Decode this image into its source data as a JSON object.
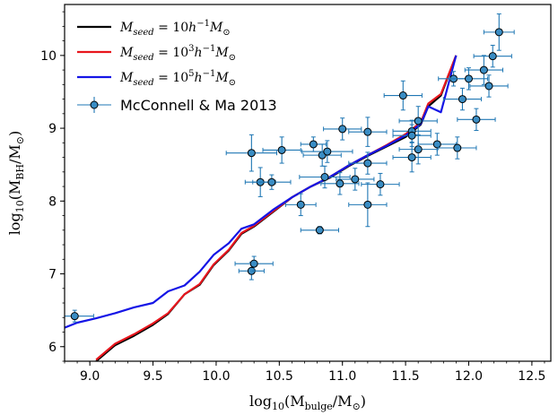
{
  "chart_data": {
    "type": "scatter",
    "xlim": [
      8.8,
      12.65
    ],
    "ylim": [
      5.8,
      10.7
    ],
    "x_ticks": [
      "9.0",
      "9.5",
      "10.0",
      "10.5",
      "11.0",
      "11.5",
      "12.0",
      "12.5"
    ],
    "y_ticks": [
      "6",
      "7",
      "8",
      "9",
      "10"
    ],
    "xlabel": "log₁₀(M_bulge/M_⊙)",
    "ylabel": "log₁₀(M_BH/M_⊙)",
    "xlabel_parts": {
      "pre": "log",
      "sub": "10",
      "mid": "(M",
      "sub2": "bulge",
      "slash": "/M",
      "sub3": "⊙",
      "post": ")"
    },
    "ylabel_parts": {
      "pre": "log",
      "sub": "10",
      "mid": "(M",
      "sub2": "BH",
      "slash": "/M",
      "sub3": "⊙",
      "post": ")"
    },
    "legend_placement": "top-left",
    "series": [
      {
        "name": "M_seed = 10h⁻¹M_⊙",
        "label_parts": {
          "M": "M",
          "sub": "seed",
          "eq": " = 10",
          "h": "h",
          "sup": "−1",
          "M2": "M",
          "sun": "⊙"
        },
        "style": "line",
        "color": "#000000",
        "x": [
          9.05,
          9.2,
          9.35,
          9.5,
          9.62,
          9.75,
          9.87,
          9.98,
          10.1,
          10.2,
          10.3,
          10.45,
          10.6,
          10.75,
          10.9,
          11.05,
          11.2,
          11.35,
          11.5,
          11.62,
          11.68,
          11.78,
          11.9
        ],
        "y": [
          5.8,
          6.02,
          6.15,
          6.3,
          6.45,
          6.72,
          6.85,
          7.12,
          7.32,
          7.55,
          7.65,
          7.85,
          8.05,
          8.2,
          8.32,
          8.48,
          8.62,
          8.75,
          8.88,
          9.05,
          9.3,
          9.45,
          10.0
        ]
      },
      {
        "name": "M_seed = 10³h⁻¹M_⊙",
        "label_parts": {
          "M": "M",
          "sub": "seed",
          "eq": " = 10",
          "exp": "3",
          "h": "h",
          "sup": "−1",
          "M2": "M",
          "sun": "⊙"
        },
        "style": "line",
        "color": "#e8161d",
        "x": [
          9.05,
          9.2,
          9.35,
          9.5,
          9.62,
          9.75,
          9.87,
          9.98,
          10.1,
          10.2,
          10.3,
          10.45,
          10.6,
          10.75,
          10.9,
          11.05,
          11.2,
          11.35,
          11.5,
          11.62,
          11.68,
          11.78,
          11.9
        ],
        "y": [
          5.82,
          6.04,
          6.17,
          6.32,
          6.46,
          6.72,
          6.86,
          7.13,
          7.33,
          7.56,
          7.66,
          7.86,
          8.05,
          8.2,
          8.33,
          8.49,
          8.63,
          8.77,
          8.92,
          9.08,
          9.34,
          9.47,
          10.0
        ]
      },
      {
        "name": "M_seed = 10⁵h⁻¹M_⊙",
        "label_parts": {
          "M": "M",
          "sub": "seed",
          "eq": " = 10",
          "exp": "5",
          "h": "h",
          "sup": "−1",
          "M2": "M",
          "sun": "⊙"
        },
        "style": "line",
        "color": "#1515e6",
        "x": [
          8.8,
          8.9,
          9.05,
          9.2,
          9.35,
          9.5,
          9.62,
          9.75,
          9.87,
          9.98,
          10.1,
          10.2,
          10.3,
          10.45,
          10.6,
          10.75,
          10.9,
          11.05,
          11.2,
          11.35,
          11.5,
          11.62,
          11.68,
          11.78,
          11.9
        ],
        "y": [
          6.26,
          6.33,
          6.39,
          6.46,
          6.54,
          6.6,
          6.76,
          6.84,
          7.03,
          7.26,
          7.42,
          7.62,
          7.68,
          7.88,
          8.05,
          8.2,
          8.33,
          8.49,
          8.63,
          8.76,
          8.9,
          9.06,
          9.3,
          9.22,
          10.0
        ]
      },
      {
        "name": "McConnell & Ma 2013",
        "style": "errorbar",
        "color": "#1f77b4",
        "marker_fill": "#3a8dc4",
        "points": [
          {
            "x": 8.88,
            "y": 6.42,
            "xerr": 0.15,
            "yerr": 0.08
          },
          {
            "x": 10.28,
            "y": 7.04,
            "xerr": 0.1,
            "yerr": 0.12
          },
          {
            "x": 10.3,
            "y": 7.14,
            "xerr": 0.15,
            "yerr": 0.1
          },
          {
            "x": 10.28,
            "y": 8.66,
            "xerr": 0.2,
            "yerr": 0.25
          },
          {
            "x": 10.35,
            "y": 8.26,
            "xerr": 0.12,
            "yerr": 0.2
          },
          {
            "x": 10.44,
            "y": 8.26,
            "xerr": 0.15,
            "yerr": 0.1
          },
          {
            "x": 10.52,
            "y": 8.7,
            "xerr": 0.15,
            "yerr": 0.18
          },
          {
            "x": 10.67,
            "y": 7.95,
            "xerr": 0.12,
            "yerr": 0.15
          },
          {
            "x": 10.77,
            "y": 8.78,
            "xerr": 0.1,
            "yerr": 0.1
          },
          {
            "x": 10.84,
            "y": 8.63,
            "xerr": 0.15,
            "yerr": 0.15
          },
          {
            "x": 10.86,
            "y": 8.33,
            "xerr": 0.2,
            "yerr": 0.15
          },
          {
            "x": 10.88,
            "y": 8.68,
            "xerr": 0.2,
            "yerr": 0.15
          },
          {
            "x": 10.82,
            "y": 7.6,
            "xerr": 0.15,
            "yerr": 0.05
          },
          {
            "x": 10.98,
            "y": 8.24,
            "xerr": 0.15,
            "yerr": 0.15
          },
          {
            "x": 11.0,
            "y": 8.99,
            "xerr": 0.15,
            "yerr": 0.15
          },
          {
            "x": 11.1,
            "y": 8.3,
            "xerr": 0.15,
            "yerr": 0.15
          },
          {
            "x": 11.2,
            "y": 8.95,
            "xerr": 0.15,
            "yerr": 0.2
          },
          {
            "x": 11.2,
            "y": 8.52,
            "xerr": 0.15,
            "yerr": 0.15
          },
          {
            "x": 11.2,
            "y": 7.95,
            "xerr": 0.15,
            "yerr": 0.3
          },
          {
            "x": 11.3,
            "y": 8.23,
            "xerr": 0.15,
            "yerr": 0.15
          },
          {
            "x": 11.48,
            "y": 9.45,
            "xerr": 0.15,
            "yerr": 0.2
          },
          {
            "x": 11.55,
            "y": 8.96,
            "xerr": 0.15,
            "yerr": 0.15
          },
          {
            "x": 11.55,
            "y": 8.9,
            "xerr": 0.15,
            "yerr": 0.15
          },
          {
            "x": 11.55,
            "y": 8.6,
            "xerr": 0.15,
            "yerr": 0.2
          },
          {
            "x": 11.6,
            "y": 9.1,
            "xerr": 0.15,
            "yerr": 0.2
          },
          {
            "x": 11.6,
            "y": 8.71,
            "xerr": 0.15,
            "yerr": 0.2
          },
          {
            "x": 11.75,
            "y": 8.78,
            "xerr": 0.15,
            "yerr": 0.15
          },
          {
            "x": 11.88,
            "y": 9.68,
            "xerr": 0.12,
            "yerr": 0.1
          },
          {
            "x": 11.91,
            "y": 8.73,
            "xerr": 0.15,
            "yerr": 0.15
          },
          {
            "x": 11.95,
            "y": 9.4,
            "xerr": 0.15,
            "yerr": 0.15
          },
          {
            "x": 12.0,
            "y": 9.68,
            "xerr": 0.15,
            "yerr": 0.15
          },
          {
            "x": 12.06,
            "y": 9.12,
            "xerr": 0.15,
            "yerr": 0.15
          },
          {
            "x": 12.12,
            "y": 9.8,
            "xerr": 0.15,
            "yerr": 0.2
          },
          {
            "x": 12.16,
            "y": 9.58,
            "xerr": 0.15,
            "yerr": 0.15
          },
          {
            "x": 12.19,
            "y": 9.99,
            "xerr": 0.15,
            "yerr": 0.15
          },
          {
            "x": 12.24,
            "y": 10.32,
            "xerr": 0.12,
            "yerr": 0.25
          }
        ]
      }
    ]
  }
}
